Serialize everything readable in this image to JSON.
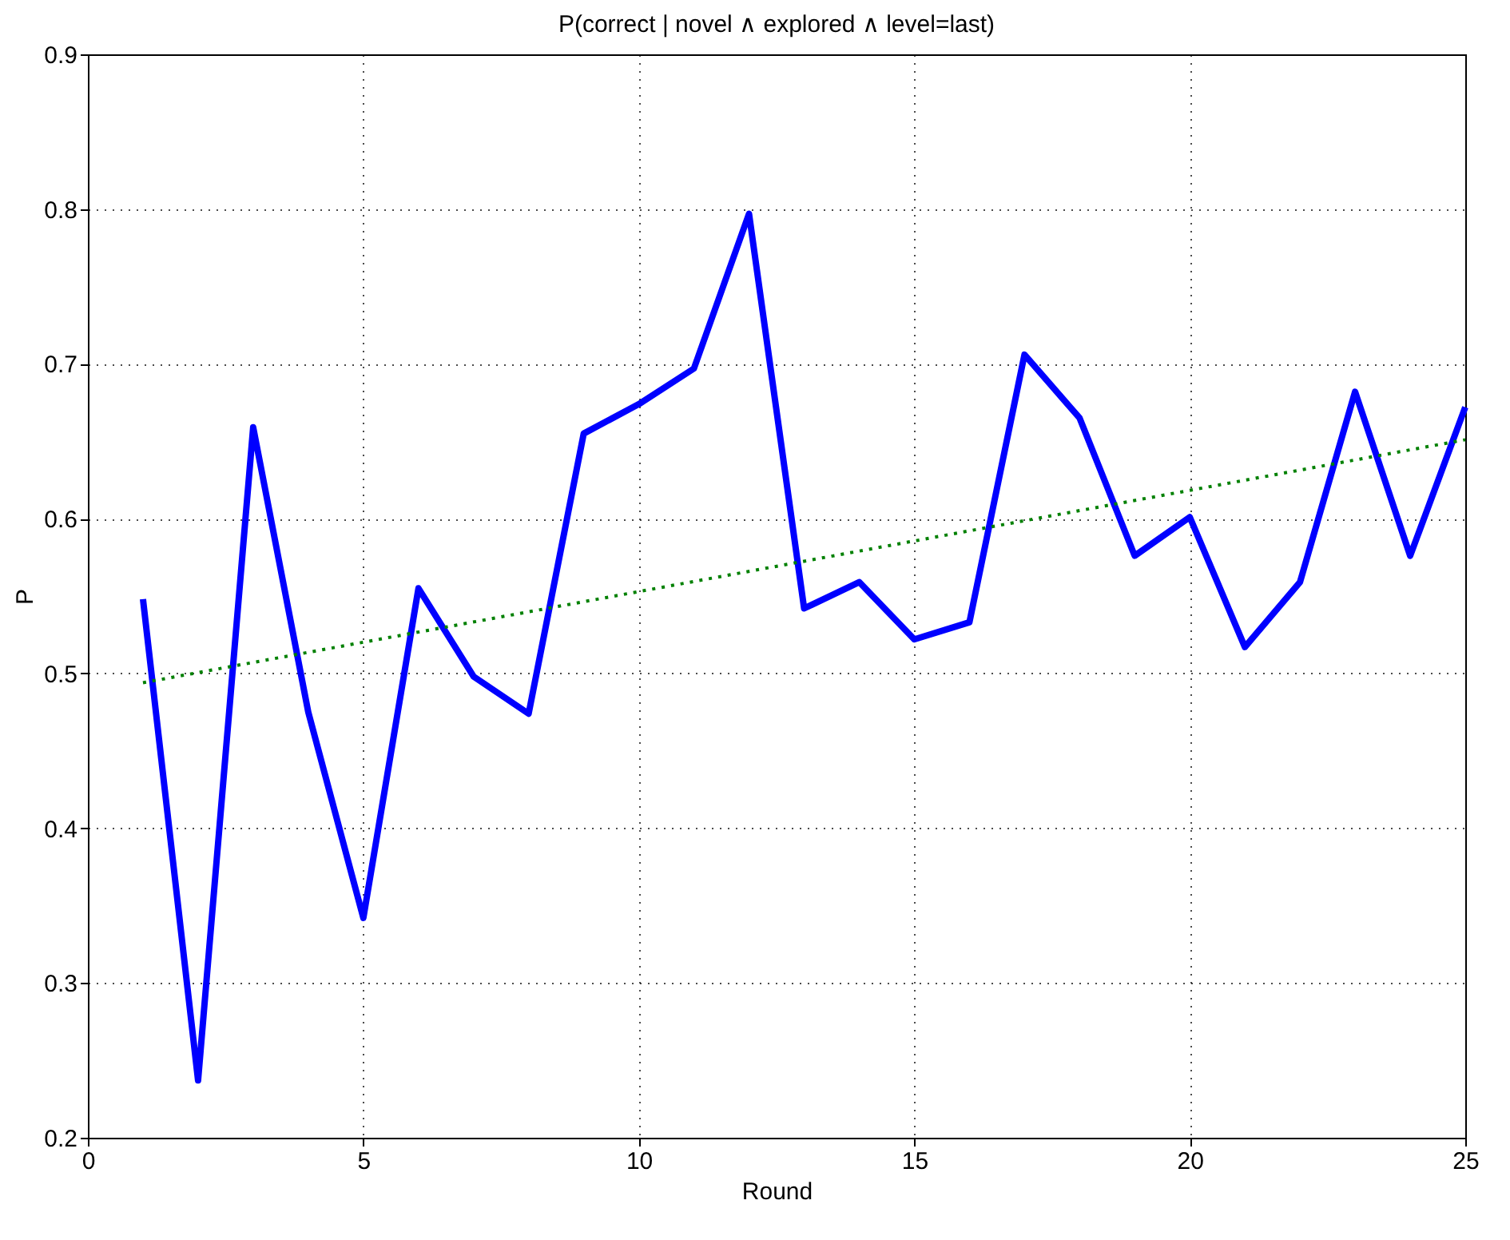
{
  "chart_data": {
    "type": "line",
    "title": "P(correct | novel ∧ explored ∧ level=last)",
    "xlabel": "Round",
    "ylabel": "P",
    "x": [
      1,
      2,
      3,
      4,
      5,
      6,
      7,
      8,
      9,
      10,
      11,
      12,
      13,
      14,
      15,
      16,
      17,
      18,
      19,
      20,
      21,
      22,
      23,
      24,
      25
    ],
    "series": [
      {
        "color": "#0000ff",
        "values": [
          0.548,
          0.237,
          0.659,
          0.475,
          0.342,
          0.555,
          0.498,
          0.474,
          0.655,
          0.674,
          0.697,
          0.797,
          0.542,
          0.559,
          0.522,
          0.533,
          0.706,
          0.665,
          0.576,
          0.601,
          0.517,
          0.559,
          0.682,
          0.576,
          0.672
        ]
      },
      {
        "type": "line",
        "color": "#008000",
        "line_style": "dotted",
        "x": [
          1,
          25
        ],
        "values": [
          0.494,
          0.651
        ]
      }
    ],
    "xlim": [
      0,
      25
    ],
    "xticks": [
      0,
      5,
      10,
      15,
      20,
      25
    ],
    "ylim": [
      0.2,
      0.9
    ],
    "yticks": [
      0.2,
      0.3,
      0.4,
      0.5,
      0.6,
      0.7,
      0.8,
      0.9
    ],
    "grid": true,
    "line_style": "solid"
  }
}
